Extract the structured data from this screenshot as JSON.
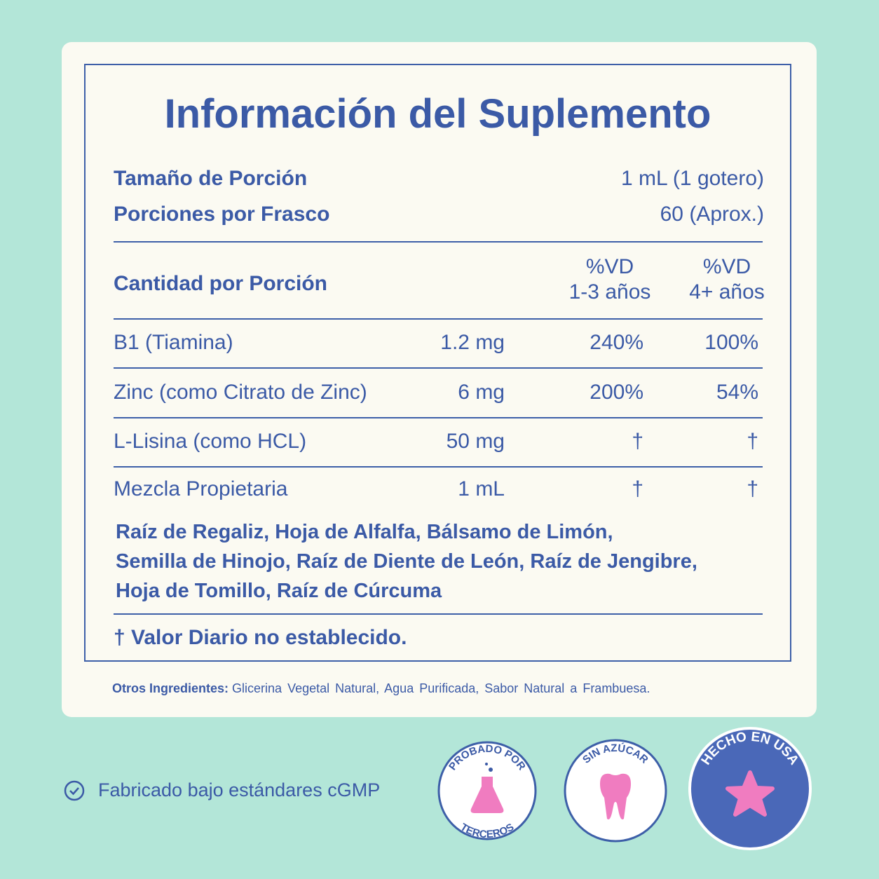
{
  "title": "Información del Suplemento",
  "serving": [
    {
      "label": "Tamaño de Porción",
      "value": "1 mL (1 gotero)"
    },
    {
      "label": "Porciones por Frasco",
      "value": "60 (Aprox.)"
    }
  ],
  "header": {
    "label": "Cantidad por Porción",
    "columns": [
      [
        "%VD",
        "1-3 años"
      ],
      [
        "%VD",
        "4+ años"
      ]
    ]
  },
  "rows": [
    [
      "B1 (Tiamina)",
      "1.2 mg",
      "240%",
      "100%"
    ],
    [
      "Zinc (como Citrato de Zinc)",
      "6 mg",
      "200%",
      "54%"
    ],
    [
      "L-Lisina (como HCL)",
      "50 mg",
      "†",
      "†"
    ],
    [
      "Mezcla Propietaria",
      "1 mL",
      "†",
      "†"
    ]
  ],
  "blend": [
    "Raíz de Regaliz, Hoja de Alfalfa, Bálsamo de Limón,",
    "Semilla de Hinojo, Raíz de Diente de León, Raíz de Jengibre,",
    "Hoja de Tomillo, Raíz de Cúrcuma"
  ],
  "footnote": "† Valor Diario no establecido.",
  "other_ingredients": {
    "label": "Otros Ingredientes:",
    "text": "Glicerina Vegetal Natural, Agua Purificada, Sabor Natural a Frambuesa."
  },
  "certification": "Fabricado bajo estándares cGMP",
  "badges": [
    {
      "top": "PROBADO POR",
      "bottom": "TERCEROS"
    },
    {
      "top": "SIN AZÚCAR"
    },
    {
      "top": "HECHO EN USA"
    }
  ]
}
